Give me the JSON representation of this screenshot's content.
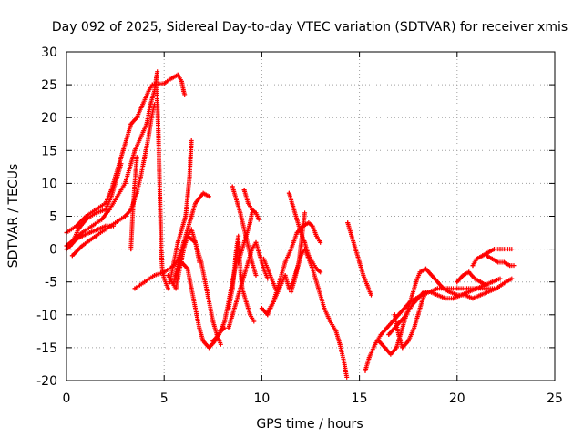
{
  "chart_data": {
    "type": "scatter",
    "title": "Day 092 of 2025, Sidereal Day-to-day VTEC variation (SDTVAR) for receiver xmis",
    "xlabel": "GPS time / hours",
    "ylabel": "SDTVAR / TECUs",
    "xlim": [
      0,
      25
    ],
    "ylim": [
      -20,
      30
    ],
    "xticks": [
      "0",
      "5",
      "10",
      "15",
      "20",
      "25"
    ],
    "yticks": [
      "-20",
      "-15",
      "-10",
      "-5",
      "0",
      "5",
      "10",
      "15",
      "20",
      "25",
      "30"
    ],
    "grid": true,
    "marker": "+",
    "color": "#ff0000",
    "tracks": [
      [
        [
          0.0,
          2.5
        ],
        [
          0.5,
          3.5
        ],
        [
          1.0,
          5.0
        ],
        [
          1.5,
          6.0
        ],
        [
          2.0,
          7.0
        ],
        [
          2.3,
          9.0
        ],
        [
          2.5,
          11.0
        ],
        [
          2.7,
          13.0
        ],
        [
          2.9,
          15.0
        ],
        [
          3.1,
          17.0
        ],
        [
          3.3,
          19.0
        ],
        [
          3.6,
          20.0
        ],
        [
          3.9,
          22.0
        ],
        [
          4.2,
          24.0
        ],
        [
          4.4,
          25.0
        ],
        [
          5.0,
          25.2
        ],
        [
          5.4,
          26.0
        ],
        [
          5.7,
          26.5
        ],
        [
          5.9,
          25.5
        ],
        [
          6.0,
          24.0
        ],
        [
          6.05,
          23.5
        ]
      ],
      [
        [
          0.0,
          0.0
        ],
        [
          0.3,
          1.0
        ],
        [
          0.6,
          3.0
        ],
        [
          1.0,
          4.5
        ],
        [
          1.5,
          5.5
        ],
        [
          2.0,
          6.0
        ],
        [
          2.3,
          8.0
        ],
        [
          2.6,
          11.0
        ],
        [
          2.8,
          13.0
        ]
      ],
      [
        [
          0.0,
          0.5
        ],
        [
          0.4,
          1.5
        ],
        [
          0.8,
          2.5
        ],
        [
          1.3,
          3.5
        ],
        [
          1.8,
          4.5
        ],
        [
          2.2,
          6.0
        ],
        [
          2.6,
          8.0
        ],
        [
          3.0,
          10.0
        ],
        [
          3.3,
          13.0
        ],
        [
          3.5,
          15.0
        ],
        [
          3.8,
          17.0
        ],
        [
          4.1,
          19.0
        ],
        [
          4.3,
          22.0
        ],
        [
          4.5,
          24.0
        ],
        [
          4.6,
          26.0
        ],
        [
          4.65,
          27.0
        ]
      ],
      [
        [
          0.3,
          -1.0
        ],
        [
          0.8,
          0.5
        ],
        [
          1.5,
          2.0
        ],
        [
          2.0,
          3.0
        ],
        [
          2.5,
          4.0
        ],
        [
          3.0,
          5.0
        ],
        [
          3.3,
          6.0
        ],
        [
          3.6,
          8.5
        ],
        [
          3.8,
          11.0
        ],
        [
          4.0,
          14.0
        ],
        [
          4.2,
          17.0
        ],
        [
          4.35,
          20.0
        ],
        [
          4.5,
          22.0
        ]
      ],
      [
        [
          3.3,
          0.0
        ],
        [
          3.35,
          3.0
        ],
        [
          3.4,
          6.0
        ],
        [
          3.45,
          8.0
        ],
        [
          3.5,
          10.0
        ],
        [
          3.55,
          12.0
        ],
        [
          3.6,
          14.0
        ]
      ],
      [
        [
          4.6,
          26.0
        ],
        [
          4.65,
          22.0
        ],
        [
          4.7,
          18.0
        ],
        [
          4.75,
          12.0
        ],
        [
          4.8,
          6.0
        ],
        [
          4.85,
          0.0
        ],
        [
          4.9,
          -3.0
        ],
        [
          5.0,
          -4.5
        ],
        [
          5.2,
          -6.0
        ]
      ],
      [
        [
          3.5,
          -6.0
        ],
        [
          4.0,
          -5.0
        ],
        [
          4.5,
          -4.0
        ],
        [
          5.0,
          -3.5
        ],
        [
          5.5,
          -2.5
        ],
        [
          5.8,
          -1.0
        ],
        [
          6.0,
          1.0
        ],
        [
          6.2,
          3.0
        ],
        [
          6.4,
          5.0
        ],
        [
          6.6,
          7.0
        ],
        [
          7.0,
          8.5
        ],
        [
          7.3,
          8.0
        ]
      ],
      [
        [
          5.3,
          -5.0
        ],
        [
          5.5,
          -2.0
        ],
        [
          5.7,
          1.0
        ],
        [
          5.9,
          3.0
        ],
        [
          6.1,
          5.0
        ],
        [
          6.2,
          8.0
        ],
        [
          6.3,
          11.0
        ],
        [
          6.35,
          14.0
        ],
        [
          6.4,
          16.5
        ]
      ],
      [
        [
          5.5,
          -5.0
        ],
        [
          5.8,
          -1.0
        ],
        [
          6.2,
          2.0
        ],
        [
          6.6,
          1.0
        ],
        [
          6.9,
          -2.0
        ],
        [
          7.1,
          -5.0
        ],
        [
          7.3,
          -8.0
        ],
        [
          7.5,
          -11.0
        ],
        [
          7.7,
          -13.0
        ],
        [
          7.9,
          -14.5
        ]
      ],
      [
        [
          5.6,
          -4.0
        ],
        [
          5.9,
          -2.0
        ],
        [
          6.2,
          -3.0
        ],
        [
          6.4,
          -6.0
        ],
        [
          6.6,
          -9.0
        ],
        [
          6.8,
          -12.0
        ],
        [
          7.0,
          -14.0
        ],
        [
          7.3,
          -15.0
        ],
        [
          7.6,
          -14.0
        ],
        [
          7.9,
          -12.5
        ],
        [
          8.1,
          -12.0
        ]
      ],
      [
        [
          7.5,
          -14.0
        ],
        [
          7.8,
          -13.0
        ],
        [
          8.1,
          -11.0
        ],
        [
          8.3,
          -8.0
        ],
        [
          8.5,
          -5.0
        ],
        [
          8.7,
          -2.0
        ],
        [
          8.8,
          1.0
        ],
        [
          8.9,
          -3.0
        ],
        [
          9.0,
          -6.0
        ],
        [
          9.2,
          -8.0
        ],
        [
          9.4,
          -10.0
        ],
        [
          9.6,
          -11.0
        ]
      ],
      [
        [
          8.3,
          -12.0
        ],
        [
          8.5,
          -10.0
        ],
        [
          8.7,
          -8.0
        ],
        [
          8.9,
          -6.0
        ],
        [
          9.1,
          -4.0
        ],
        [
          9.3,
          -2.0
        ],
        [
          9.5,
          0.0
        ],
        [
          9.7,
          1.0
        ],
        [
          9.9,
          -1.0
        ],
        [
          10.1,
          -3.0
        ],
        [
          10.3,
          -4.5
        ]
      ],
      [
        [
          8.5,
          9.5
        ],
        [
          8.7,
          7.5
        ],
        [
          8.9,
          5.5
        ],
        [
          9.1,
          3.0
        ],
        [
          9.3,
          0.5
        ],
        [
          9.5,
          -2.0
        ],
        [
          9.7,
          -4.0
        ]
      ],
      [
        [
          9.1,
          9.0
        ],
        [
          9.3,
          7.0
        ],
        [
          9.5,
          6.0
        ],
        [
          9.7,
          5.5
        ],
        [
          9.85,
          4.5
        ]
      ],
      [
        [
          8.8,
          -2.0
        ],
        [
          9.0,
          0.0
        ],
        [
          9.2,
          2.0
        ],
        [
          9.4,
          4.0
        ],
        [
          9.5,
          5.5
        ]
      ],
      [
        [
          8.3,
          -9.0
        ],
        [
          8.5,
          -6.0
        ],
        [
          8.6,
          -3.0
        ],
        [
          8.7,
          0.0
        ],
        [
          8.8,
          2.0
        ]
      ],
      [
        [
          10.0,
          -9.0
        ],
        [
          10.3,
          -10.0
        ],
        [
          10.6,
          -8.0
        ],
        [
          10.9,
          -5.0
        ],
        [
          11.2,
          -2.0
        ],
        [
          11.5,
          0.0
        ],
        [
          11.8,
          2.5
        ],
        [
          12.1,
          3.5
        ],
        [
          12.4,
          4.0
        ],
        [
          12.6,
          3.5
        ],
        [
          12.8,
          2.0
        ],
        [
          13.0,
          1.0
        ]
      ],
      [
        [
          10.3,
          -9.5
        ],
        [
          10.6,
          -8.0
        ],
        [
          10.9,
          -6.0
        ],
        [
          11.2,
          -4.0
        ],
        [
          11.4,
          -6.0
        ],
        [
          11.6,
          -5.0
        ],
        [
          11.8,
          -3.0
        ],
        [
          12.0,
          -1.0
        ],
        [
          12.2,
          0.0
        ],
        [
          12.4,
          -1.5
        ],
        [
          12.6,
          -3.0
        ],
        [
          12.9,
          -6.0
        ],
        [
          13.2,
          -9.0
        ],
        [
          13.5,
          -11.0
        ],
        [
          13.8,
          -12.5
        ],
        [
          14.0,
          -14.5
        ],
        [
          14.2,
          -17.0
        ],
        [
          14.35,
          -19.5
        ]
      ],
      [
        [
          11.4,
          8.5
        ],
        [
          11.6,
          6.5
        ],
        [
          11.8,
          4.5
        ],
        [
          12.0,
          2.5
        ],
        [
          12.2,
          1.0
        ],
        [
          12.4,
          -1.0
        ],
        [
          12.6,
          -2.0
        ],
        [
          12.8,
          -3.0
        ],
        [
          13.0,
          -3.5
        ]
      ],
      [
        [
          10.1,
          -1.5
        ],
        [
          10.3,
          -3.0
        ],
        [
          10.5,
          -4.5
        ],
        [
          10.7,
          -6.0
        ]
      ],
      [
        [
          11.5,
          -6.5
        ],
        [
          11.7,
          -4.5
        ],
        [
          11.9,
          -2.0
        ],
        [
          12.0,
          0.5
        ],
        [
          12.1,
          3.0
        ],
        [
          12.2,
          5.5
        ]
      ],
      [
        [
          14.4,
          4.0
        ],
        [
          14.6,
          2.0
        ],
        [
          14.8,
          0.0
        ],
        [
          15.0,
          -2.0
        ],
        [
          15.2,
          -4.0
        ],
        [
          15.4,
          -5.5
        ],
        [
          15.6,
          -7.0
        ]
      ],
      [
        [
          15.3,
          -18.5
        ],
        [
          15.5,
          -16.5
        ],
        [
          15.8,
          -14.5
        ],
        [
          16.1,
          -13.0
        ],
        [
          16.4,
          -12.0
        ],
        [
          16.7,
          -11.0
        ],
        [
          17.0,
          -10.0
        ],
        [
          17.3,
          -9.0
        ],
        [
          17.6,
          -8.0
        ],
        [
          17.9,
          -7.5
        ],
        [
          18.2,
          -7.0
        ],
        [
          18.6,
          -6.5
        ],
        [
          19.0,
          -6.0
        ],
        [
          19.5,
          -6.0
        ],
        [
          20.0,
          -6.0
        ],
        [
          20.5,
          -6.0
        ],
        [
          21.0,
          -6.0
        ],
        [
          21.5,
          -6.0
        ],
        [
          22.0,
          -6.0
        ],
        [
          22.5,
          -5.0
        ],
        [
          22.8,
          -4.5
        ]
      ],
      [
        [
          16.0,
          -14.0
        ],
        [
          16.3,
          -15.0
        ],
        [
          16.6,
          -16.0
        ],
        [
          16.9,
          -15.0
        ],
        [
          17.1,
          -13.0
        ],
        [
          17.3,
          -11.0
        ],
        [
          17.5,
          -9.0
        ],
        [
          17.7,
          -7.0
        ],
        [
          17.9,
          -5.0
        ],
        [
          18.1,
          -3.5
        ],
        [
          18.4,
          -3.0
        ],
        [
          18.7,
          -4.0
        ],
        [
          19.0,
          -5.0
        ],
        [
          19.3,
          -6.0
        ],
        [
          19.6,
          -6.5
        ],
        [
          20.0,
          -7.0
        ],
        [
          20.4,
          -7.0
        ],
        [
          20.8,
          -7.5
        ],
        [
          21.2,
          -7.0
        ],
        [
          21.6,
          -6.5
        ],
        [
          22.0,
          -6.0
        ],
        [
          22.5,
          -5.0
        ]
      ],
      [
        [
          16.5,
          -13.0
        ],
        [
          16.8,
          -12.0
        ],
        [
          17.1,
          -11.0
        ],
        [
          17.4,
          -10.0
        ],
        [
          17.7,
          -8.5
        ],
        [
          18.0,
          -7.5
        ],
        [
          18.3,
          -6.5
        ],
        [
          18.6,
          -6.5
        ],
        [
          19.0,
          -7.0
        ],
        [
          19.4,
          -7.5
        ],
        [
          19.8,
          -7.5
        ],
        [
          20.2,
          -7.0
        ],
        [
          20.6,
          -6.5
        ],
        [
          21.0,
          -6.0
        ],
        [
          21.4,
          -5.5
        ],
        [
          21.8,
          -5.0
        ],
        [
          22.2,
          -4.5
        ]
      ],
      [
        [
          16.8,
          -10.0
        ],
        [
          17.0,
          -13.0
        ],
        [
          17.2,
          -15.0
        ],
        [
          17.5,
          -14.0
        ],
        [
          17.8,
          -12.0
        ],
        [
          18.0,
          -10.0
        ],
        [
          18.2,
          -8.0
        ],
        [
          18.4,
          -6.5
        ]
      ],
      [
        [
          20.0,
          -5.0
        ],
        [
          20.3,
          -4.0
        ],
        [
          20.6,
          -3.5
        ],
        [
          20.9,
          -4.5
        ],
        [
          21.2,
          -5.0
        ],
        [
          21.5,
          -5.5
        ]
      ],
      [
        [
          20.8,
          -2.5
        ],
        [
          21.0,
          -1.5
        ],
        [
          21.3,
          -1.0
        ],
        [
          21.6,
          -0.5
        ],
        [
          21.9,
          0.0
        ],
        [
          22.2,
          0.0
        ],
        [
          22.5,
          0.0
        ],
        [
          22.8,
          0.0
        ]
      ],
      [
        [
          21.5,
          -1.0
        ],
        [
          21.8,
          -1.5
        ],
        [
          22.1,
          -2.0
        ],
        [
          22.4,
          -2.0
        ],
        [
          22.7,
          -2.5
        ],
        [
          22.9,
          -2.5
        ]
      ],
      [
        [
          0.0,
          0.0
        ],
        [
          0.2,
          0.5
        ],
        [
          0.5,
          1.5
        ],
        [
          0.8,
          2.0
        ],
        [
          1.2,
          2.5
        ],
        [
          1.6,
          3.0
        ],
        [
          2.0,
          3.5
        ],
        [
          2.4,
          3.5
        ]
      ],
      [
        [
          5.2,
          -4.0
        ],
        [
          5.4,
          -5.0
        ],
        [
          5.6,
          -6.0
        ],
        [
          5.8,
          -3.0
        ],
        [
          6.0,
          0.0
        ],
        [
          6.2,
          2.0
        ],
        [
          6.4,
          3.0
        ],
        [
          6.6,
          1.0
        ],
        [
          6.8,
          -2.0
        ]
      ]
    ]
  }
}
